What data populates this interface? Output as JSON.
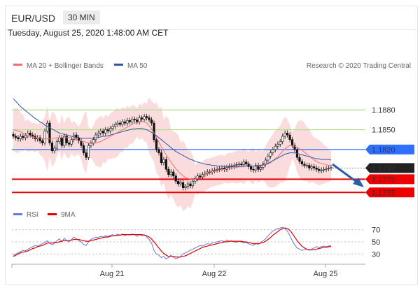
{
  "header": {
    "symbol": "EUR/USD",
    "timeframe": "30 MIN",
    "datetime": "Tuesday, August 25, 2020 1:48:00 AM CET"
  },
  "legend": {
    "ma20_bb": "MA 20 + Bollinger Bands",
    "ma50": "MA 50",
    "credit": "Research © 2020 Trading Central",
    "rsi": "RSI",
    "nine_ma": "9MA"
  },
  "colors": {
    "ma20": "#f07070",
    "ma50": "#3355aa",
    "bands": "#f8d0d0",
    "rsi": "#6677dd",
    "nine_ma": "#e00000",
    "green_line": "#b5dd90",
    "blue_level": "#2f6fff",
    "red_level": "#ee0000",
    "price_tag": "#222222"
  },
  "chart_data": [
    {
      "type": "candlestick",
      "x_labels": [
        "Aug 21",
        "Aug 22",
        "Aug 25"
      ],
      "price_range": [
        1.175,
        1.193
      ],
      "levels": [
        {
          "value": 1.188,
          "label": "1.1880",
          "style": "green-line"
        },
        {
          "value": 1.185,
          "label": "1.1850",
          "style": "green-line"
        },
        {
          "value": 1.182,
          "label": "1.1820",
          "style": "blue-tag"
        },
        {
          "value": 1.1792,
          "label": "1.1792",
          "style": "current-price"
        },
        {
          "value": 1.1775,
          "label": "1.1775",
          "style": "red-tag"
        },
        {
          "value": 1.1755,
          "label": "1.1755",
          "style": "red-tag"
        }
      ],
      "closes": [
        1.184,
        1.1838,
        1.1836,
        1.184,
        1.1838,
        1.1841,
        1.1845,
        1.1842,
        1.184,
        1.1836,
        1.1838,
        1.1833,
        1.183,
        1.1848,
        1.186,
        1.183,
        1.1818,
        1.1822,
        1.1832,
        1.1838,
        1.1826,
        1.184,
        1.183,
        1.1828,
        1.1835,
        1.1842,
        1.1838,
        1.1833,
        1.1826,
        1.1815,
        1.1808,
        1.1826,
        1.183,
        1.1835,
        1.1842,
        1.1845,
        1.1848,
        1.1845,
        1.185,
        1.1848,
        1.1852,
        1.1855,
        1.1858,
        1.186,
        1.1858,
        1.1862,
        1.186,
        1.1864,
        1.1862,
        1.1866,
        1.1865,
        1.1862,
        1.1868,
        1.1866,
        1.187,
        1.1868,
        1.1865,
        1.186,
        1.1835,
        1.182,
        1.1815,
        1.18,
        1.1805,
        1.179,
        1.1782,
        1.1786,
        1.178,
        1.1772,
        1.1768,
        1.177,
        1.1762,
        1.1764,
        1.1768,
        1.1765,
        1.1772,
        1.1776,
        1.178,
        1.1778,
        1.1782,
        1.1784,
        1.1786,
        1.1786,
        1.1788,
        1.1789,
        1.179,
        1.1791,
        1.1792,
        1.179,
        1.1793,
        1.1795,
        1.1794,
        1.1796,
        1.1797,
        1.1798,
        1.1797,
        1.1801,
        1.1798,
        1.1794,
        1.179,
        1.1789,
        1.1796,
        1.179,
        1.1793,
        1.1798,
        1.1804,
        1.181,
        1.1815,
        1.182,
        1.1825,
        1.1828,
        1.1832,
        1.184,
        1.1845,
        1.1842,
        1.1835,
        1.1826,
        1.182,
        1.1808,
        1.1802,
        1.1798,
        1.1796,
        1.1796,
        1.1792,
        1.1794,
        1.1792,
        1.179,
        1.1788,
        1.1789,
        1.179,
        1.1791,
        1.1792,
        1.1793
      ],
      "ma20": [
        1.185,
        1.1849,
        1.1848,
        1.1847,
        1.1845,
        1.1842,
        1.1841,
        1.184,
        1.1839,
        1.1838,
        1.1838,
        1.1837,
        1.1836,
        1.1836,
        1.1836,
        1.1836,
        1.1836,
        1.1837,
        1.1838,
        1.1838,
        1.1838,
        1.1838,
        1.1838,
        1.1838,
        1.1837,
        1.1836,
        1.1835,
        1.1834,
        1.1833,
        1.1832,
        1.1831,
        1.183,
        1.1829,
        1.1829,
        1.183,
        1.1831,
        1.1832,
        1.1834,
        1.1836,
        1.1838,
        1.184,
        1.1842,
        1.1844,
        1.1846,
        1.1848,
        1.185,
        1.1852,
        1.1854,
        1.1856,
        1.1858,
        1.186,
        1.1861,
        1.1862,
        1.1862,
        1.1862,
        1.186,
        1.1856,
        1.1851,
        1.1845,
        1.1838,
        1.1831,
        1.1824,
        1.1818,
        1.1812,
        1.1806,
        1.1801,
        1.1796,
        1.1791,
        1.1787,
        1.1783,
        1.178,
        1.1778,
        1.1776,
        1.1775,
        1.1775,
        1.1775,
        1.1776,
        1.1777,
        1.1779,
        1.1781,
        1.1783,
        1.1784,
        1.1786,
        1.1787,
        1.1788,
        1.1789,
        1.179,
        1.179,
        1.1791,
        1.1792,
        1.1792,
        1.1793,
        1.1793,
        1.1794,
        1.1794,
        1.1795,
        1.1795,
        1.1795,
        1.1795,
        1.1795,
        1.1795,
        1.1795,
        1.1795,
        1.1796,
        1.1797,
        1.1798,
        1.18,
        1.1803,
        1.1806,
        1.1809,
        1.1813,
        1.1817,
        1.1821,
        1.1824,
        1.1826,
        1.1826,
        1.1825,
        1.1823,
        1.1821,
        1.1819,
        1.1816,
        1.1813,
        1.181,
        1.1807,
        1.1804,
        1.1802,
        1.18,
        1.1799,
        1.1798,
        1.1797,
        1.1796,
        1.1795
      ],
      "ma50": [
        1.1897,
        1.1893,
        1.1889,
        1.1885,
        1.1882,
        1.1879,
        1.1876,
        1.1873,
        1.187,
        1.1867,
        1.1865,
        1.1862,
        1.186,
        1.1857,
        1.1855,
        1.1853,
        1.1851,
        1.1849,
        1.1847,
        1.1845,
        1.1844,
        1.1843,
        1.1842,
        1.1841,
        1.184,
        1.1839,
        1.1838,
        1.1838,
        1.1837,
        1.1837,
        1.1837,
        1.1837,
        1.1837,
        1.1837,
        1.1838,
        1.1838,
        1.1839,
        1.184,
        1.184,
        1.1841,
        1.1842,
        1.1843,
        1.1844,
        1.1845,
        1.1846,
        1.1847,
        1.1848,
        1.1849,
        1.185,
        1.1851,
        1.1851,
        1.1852,
        1.1852,
        1.1852,
        1.1851,
        1.185,
        1.1848,
        1.1846,
        1.1844,
        1.1841,
        1.1838,
        1.1835,
        1.1832,
        1.1829,
        1.1826,
        1.1823,
        1.182,
        1.1817,
        1.1815,
        1.1813,
        1.1811,
        1.1809,
        1.1807,
        1.1805,
        1.1804,
        1.1802,
        1.1801,
        1.18,
        1.1799,
        1.1798,
        1.1797,
        1.1797,
        1.1796,
        1.1796,
        1.1795,
        1.1795,
        1.1795,
        1.1794,
        1.1794,
        1.1794,
        1.1794,
        1.1794,
        1.1794,
        1.1794,
        1.1795,
        1.1795,
        1.1795,
        1.1795,
        1.1795,
        1.1795,
        1.1795,
        1.1796,
        1.1796,
        1.1797,
        1.1798,
        1.1799,
        1.1801,
        1.1803,
        1.1805,
        1.1807,
        1.1809,
        1.1811,
        1.1813,
        1.1814,
        1.1815,
        1.1815,
        1.1815,
        1.1814,
        1.1813,
        1.1812,
        1.1811,
        1.181,
        1.1809,
        1.1808,
        1.1807,
        1.1806,
        1.1806,
        1.1805,
        1.1805,
        1.1805,
        1.1805,
        1.1804
      ],
      "rsi": [
        {
          "values": [
            28,
            30,
            32,
            34,
            36,
            35,
            38,
            40,
            42,
            44,
            43,
            45,
            47,
            49,
            52,
            48,
            45,
            48,
            52,
            55,
            50,
            56,
            52,
            50,
            54,
            58,
            55,
            52,
            50,
            46,
            44,
            50,
            54,
            56,
            58,
            57,
            59,
            58,
            60,
            59,
            61,
            62,
            60,
            63,
            61,
            63,
            60,
            62,
            61,
            63,
            62,
            59,
            62,
            60,
            62,
            58,
            54,
            48,
            36,
            30,
            28,
            24,
            26,
            22,
            24,
            28,
            25,
            22,
            24,
            26,
            30,
            32,
            34,
            36,
            38,
            40,
            42,
            44,
            43,
            45,
            47,
            46,
            48,
            49,
            50,
            51,
            52,
            50,
            53,
            51,
            52,
            50,
            49,
            51,
            50,
            48,
            49,
            47,
            45,
            44,
            48,
            46,
            49,
            52,
            55,
            60,
            64,
            68,
            70,
            72,
            73,
            74,
            72,
            68,
            60,
            52,
            45,
            40,
            38,
            36,
            37,
            38,
            36,
            38,
            40,
            42,
            41,
            42,
            43,
            42,
            43,
            44
          ]
        },
        {
          "values": [
            26,
            28,
            30,
            32,
            33,
            34,
            35,
            37,
            39,
            40,
            42,
            43,
            44,
            46,
            48,
            48,
            48,
            49,
            49,
            50,
            51,
            52,
            52,
            52,
            53,
            54,
            54,
            54,
            53,
            52,
            51,
            51,
            52,
            53,
            54,
            55,
            56,
            57,
            58,
            58,
            59,
            60,
            60,
            61,
            61,
            62,
            62,
            62,
            62,
            62,
            62,
            62,
            62,
            62,
            61,
            60,
            58,
            55,
            50,
            45,
            40,
            35,
            31,
            28,
            26,
            26,
            26,
            25,
            25,
            25,
            26,
            27,
            29,
            31,
            33,
            35,
            37,
            39,
            41,
            42,
            43,
            44,
            45,
            46,
            47,
            48,
            49,
            50,
            50,
            51,
            51,
            51,
            51,
            51,
            51,
            50,
            50,
            49,
            48,
            47,
            47,
            47,
            48,
            49,
            51,
            54,
            57,
            61,
            64,
            67,
            70,
            72,
            73,
            72,
            69,
            64,
            58,
            52,
            47,
            43,
            40,
            38,
            37,
            37,
            37,
            38,
            39,
            40,
            41,
            41,
            42,
            42
          ]
        }
      ],
      "rsi_ticks": [
        "70",
        "50",
        "30"
      ]
    }
  ]
}
